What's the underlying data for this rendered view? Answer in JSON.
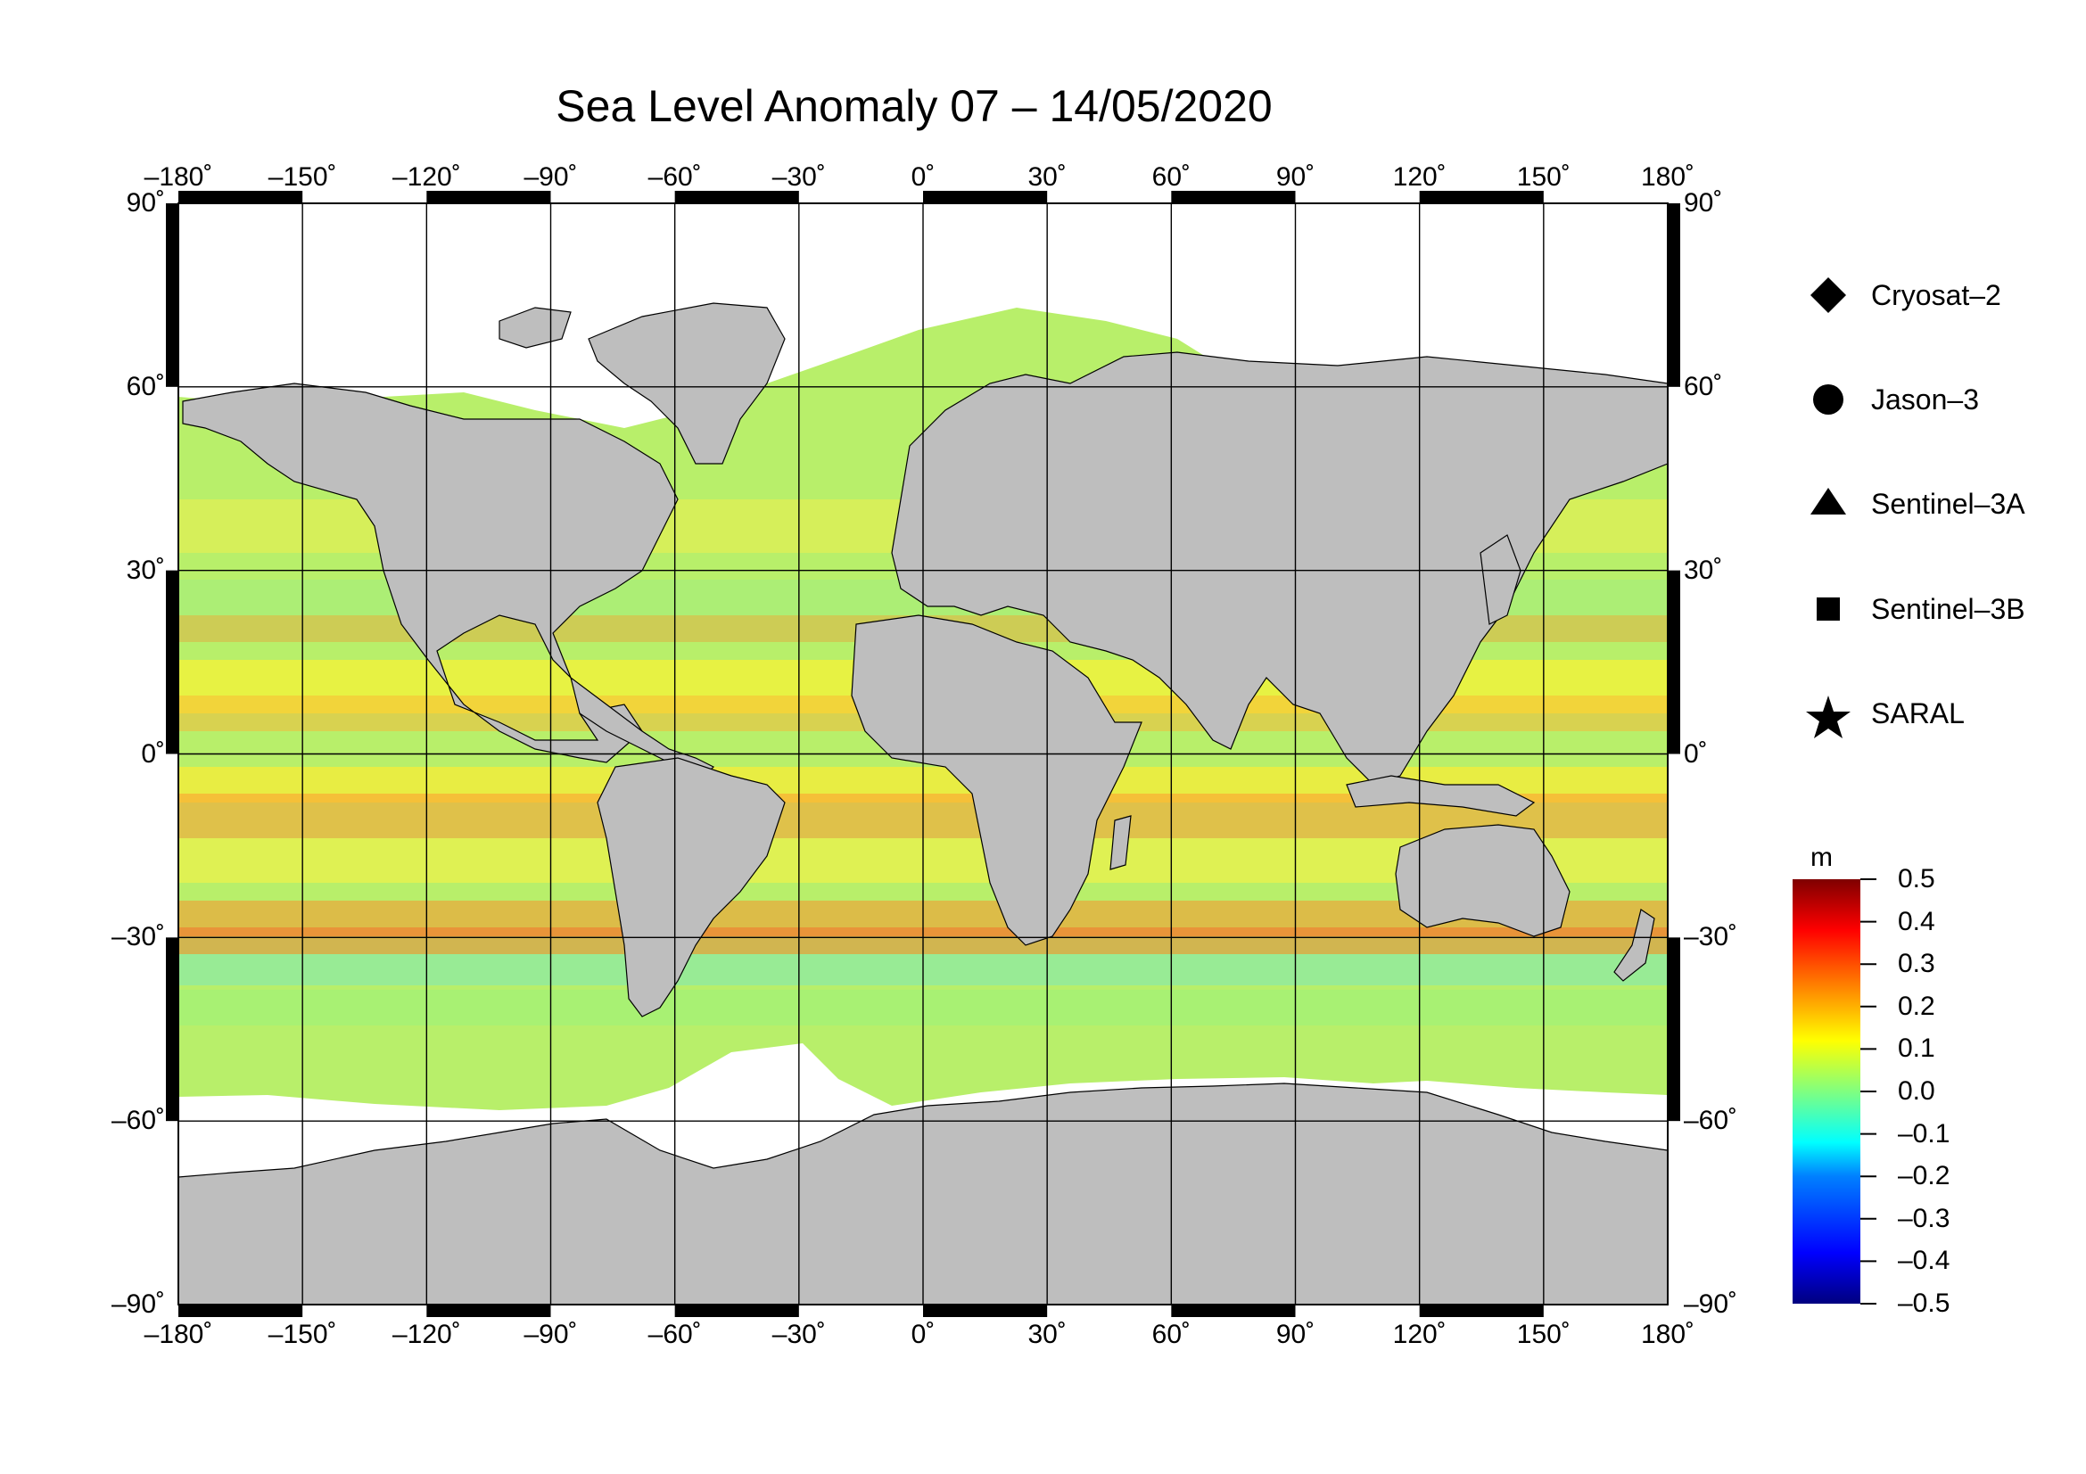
{
  "title": "Sea Level Anomaly 07 – 14/05/2020",
  "lon_ticks": [
    "–180˚",
    "–150˚",
    "–120˚",
    "–90˚",
    "–60˚",
    "–30˚",
    "0˚",
    "30˚",
    "60˚",
    "90˚",
    "120˚",
    "150˚",
    "180˚"
  ],
  "lat_ticks": [
    "90˚",
    "60˚",
    "30˚",
    "0˚",
    "–30˚",
    "–60˚",
    "–90˚"
  ],
  "legend": [
    {
      "label": "Cryosat–2",
      "icon": "diamond-icon"
    },
    {
      "label": "Jason–3",
      "icon": "circle-icon"
    },
    {
      "label": "Sentinel–3A",
      "icon": "triangle-icon"
    },
    {
      "label": "Sentinel–3B",
      "icon": "square-icon"
    },
    {
      "label": "SARAL",
      "icon": "star-icon"
    }
  ],
  "colorbar": {
    "unit": "m",
    "ticks": [
      "0.5",
      "0.4",
      "0.3",
      "0.2",
      "0.1",
      "0.0",
      "–0.1",
      "–0.2",
      "–0.3",
      "–0.4",
      "–0.5"
    ],
    "range": [
      -0.5,
      0.5
    ],
    "colors": [
      "#00007f",
      "#0000ff",
      "#0080ff",
      "#00ffff",
      "#80ff80",
      "#ffff00",
      "#ff8000",
      "#ff0000",
      "#7f0000"
    ]
  },
  "colors": {
    "land": "#bebebe",
    "ice": "#ffffff",
    "ocean_base": "#b8ef6a"
  }
}
